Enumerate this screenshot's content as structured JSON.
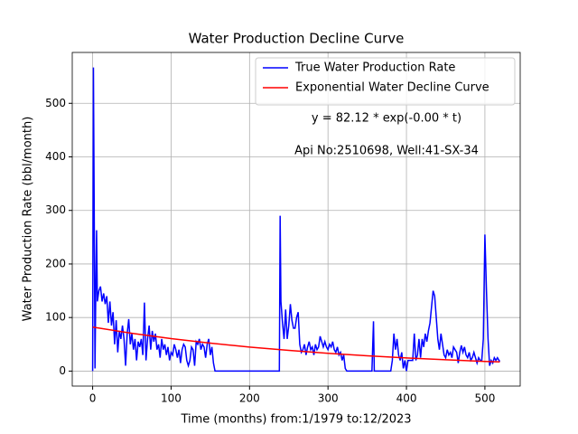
{
  "chart_data": {
    "type": "line",
    "title": "Water Production Decline Curve",
    "xlabel": "Time (months) from:1/1979 to:12/2023",
    "ylabel": "Water Production Rate (bbl/month)",
    "annotations": [
      "y = 82.12 * exp(-0.00 * t)",
      "Api No:2510698, Well:41-SX-34"
    ],
    "xlim": [
      -26,
      545
    ],
    "ylim": [
      -28,
      595
    ],
    "xticks": [
      0,
      100,
      200,
      300,
      400,
      500
    ],
    "yticks": [
      0,
      100,
      200,
      300,
      400,
      500
    ],
    "grid": true,
    "legend": "upper right",
    "series": [
      {
        "name": "True Water Production Rate",
        "color": "#0000ff",
        "x": [
          0,
          1,
          2,
          3,
          4,
          5,
          6,
          8,
          10,
          12,
          14,
          16,
          18,
          20,
          22,
          24,
          26,
          28,
          30,
          32,
          34,
          36,
          38,
          40,
          42,
          44,
          46,
          48,
          50,
          52,
          54,
          56,
          58,
          60,
          62,
          64,
          66,
          68,
          70,
          72,
          74,
          76,
          78,
          80,
          82,
          84,
          86,
          88,
          90,
          92,
          94,
          96,
          98,
          100,
          102,
          104,
          106,
          108,
          110,
          112,
          114,
          116,
          118,
          120,
          122,
          124,
          126,
          128,
          130,
          132,
          134,
          136,
          138,
          140,
          142,
          144,
          146,
          148,
          150,
          152,
          154,
          156,
          200,
          238,
          239,
          240,
          242,
          244,
          246,
          248,
          250,
          252,
          254,
          256,
          258,
          260,
          262,
          264,
          266,
          268,
          270,
          272,
          274,
          276,
          278,
          280,
          282,
          284,
          286,
          288,
          290,
          292,
          294,
          296,
          298,
          300,
          302,
          304,
          306,
          308,
          310,
          312,
          314,
          316,
          318,
          320,
          322,
          324,
          340,
          356,
          358,
          359,
          370,
          380,
          382,
          384,
          386,
          388,
          390,
          392,
          394,
          396,
          398,
          400,
          402,
          408,
          410,
          412,
          414,
          416,
          418,
          420,
          422,
          424,
          426,
          428,
          430,
          432,
          434,
          436,
          438,
          440,
          442,
          444,
          446,
          448,
          450,
          452,
          454,
          456,
          458,
          460,
          462,
          464,
          466,
          468,
          470,
          472,
          474,
          476,
          478,
          480,
          482,
          484,
          486,
          488,
          490,
          492,
          494,
          496,
          498,
          500,
          502,
          504,
          506,
          508,
          510,
          512,
          514,
          516,
          518,
          519
        ],
        "values": [
          0,
          567,
          300,
          5,
          150,
          263,
          130,
          150,
          158,
          130,
          145,
          125,
          140,
          90,
          130,
          85,
          110,
          50,
          95,
          35,
          75,
          60,
          85,
          60,
          10,
          70,
          97,
          50,
          70,
          40,
          60,
          20,
          55,
          45,
          60,
          30,
          128,
          20,
          60,
          85,
          40,
          75,
          55,
          70,
          40,
          50,
          25,
          60,
          40,
          50,
          30,
          45,
          20,
          35,
          30,
          50,
          40,
          25,
          40,
          15,
          40,
          50,
          45,
          20,
          10,
          20,
          45,
          40,
          10,
          55,
          50,
          60,
          40,
          50,
          45,
          25,
          50,
          60,
          30,
          45,
          15,
          0,
          0,
          0,
          290,
          130,
          90,
          60,
          115,
          60,
          85,
          125,
          95,
          80,
          80,
          100,
          110,
          50,
          35,
          40,
          50,
          30,
          45,
          55,
          40,
          45,
          30,
          50,
          40,
          45,
          65,
          55,
          45,
          55,
          45,
          40,
          50,
          45,
          55,
          40,
          35,
          45,
          30,
          35,
          20,
          30,
          5,
          0,
          0,
          0,
          93,
          0,
          0,
          0,
          20,
          70,
          40,
          60,
          30,
          20,
          35,
          5,
          20,
          0,
          20,
          20,
          70,
          20,
          30,
          60,
          25,
          60,
          45,
          70,
          55,
          75,
          90,
          120,
          150,
          140,
          100,
          60,
          40,
          70,
          50,
          30,
          25,
          40,
          30,
          35,
          25,
          45,
          40,
          35,
          15,
          35,
          48,
          35,
          45,
          30,
          25,
          35,
          20,
          25,
          35,
          25,
          15,
          25,
          20,
          20,
          60,
          255,
          150,
          60,
          10,
          20,
          15,
          25,
          20,
          25,
          20,
          18
        ]
      },
      {
        "name": "Exponential Water Decline Curve",
        "color": "#ff0000",
        "x": [
          0,
          50,
          100,
          150,
          200,
          250,
          300,
          350,
          400,
          450,
          500,
          519
        ],
        "values": [
          82.12,
          70.6,
          60.7,
          52.2,
          44.9,
          38.6,
          33.2,
          28.5,
          24.5,
          21.1,
          18.1,
          17.1
        ]
      }
    ]
  }
}
